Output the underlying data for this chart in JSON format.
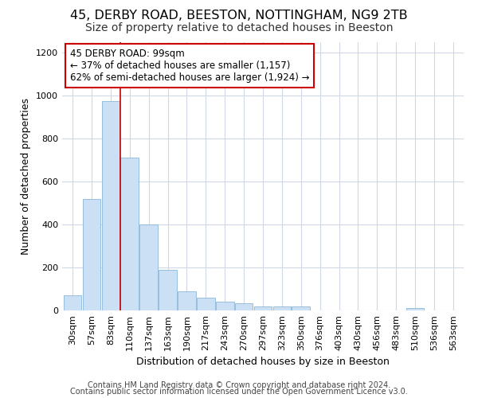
{
  "title1": "45, DERBY ROAD, BEESTON, NOTTINGHAM, NG9 2TB",
  "title2": "Size of property relative to detached houses in Beeston",
  "xlabel": "Distribution of detached houses by size in Beeston",
  "ylabel": "Number of detached properties",
  "categories": [
    "30sqm",
    "57sqm",
    "83sqm",
    "110sqm",
    "137sqm",
    "163sqm",
    "190sqm",
    "217sqm",
    "243sqm",
    "270sqm",
    "297sqm",
    "323sqm",
    "350sqm",
    "376sqm",
    "403sqm",
    "430sqm",
    "456sqm",
    "483sqm",
    "510sqm",
    "536sqm",
    "563sqm"
  ],
  "bar_values": [
    70,
    520,
    975,
    710,
    400,
    190,
    90,
    60,
    42,
    32,
    20,
    18,
    20,
    0,
    0,
    0,
    0,
    0,
    10,
    0,
    0
  ],
  "bar_color": "#cce0f5",
  "bar_edge_color": "#8ab8d8",
  "grid_color": "#d0d8e8",
  "vline_color": "#cc0000",
  "annotation_text": "45 DERBY ROAD: 99sqm\n← 37% of detached houses are smaller (1,157)\n62% of semi-detached houses are larger (1,924) →",
  "annotation_box_color": "white",
  "annotation_box_edge_color": "#cc0000",
  "ylim": [
    0,
    1250
  ],
  "yticks": [
    0,
    200,
    400,
    600,
    800,
    1000,
    1200
  ],
  "footer_line1": "Contains HM Land Registry data © Crown copyright and database right 2024.",
  "footer_line2": "Contains public sector information licensed under the Open Government Licence v3.0.",
  "title1_fontsize": 11.5,
  "title2_fontsize": 10,
  "axis_label_fontsize": 9,
  "tick_fontsize": 8,
  "footer_fontsize": 7,
  "vline_x_pos": 2.5
}
